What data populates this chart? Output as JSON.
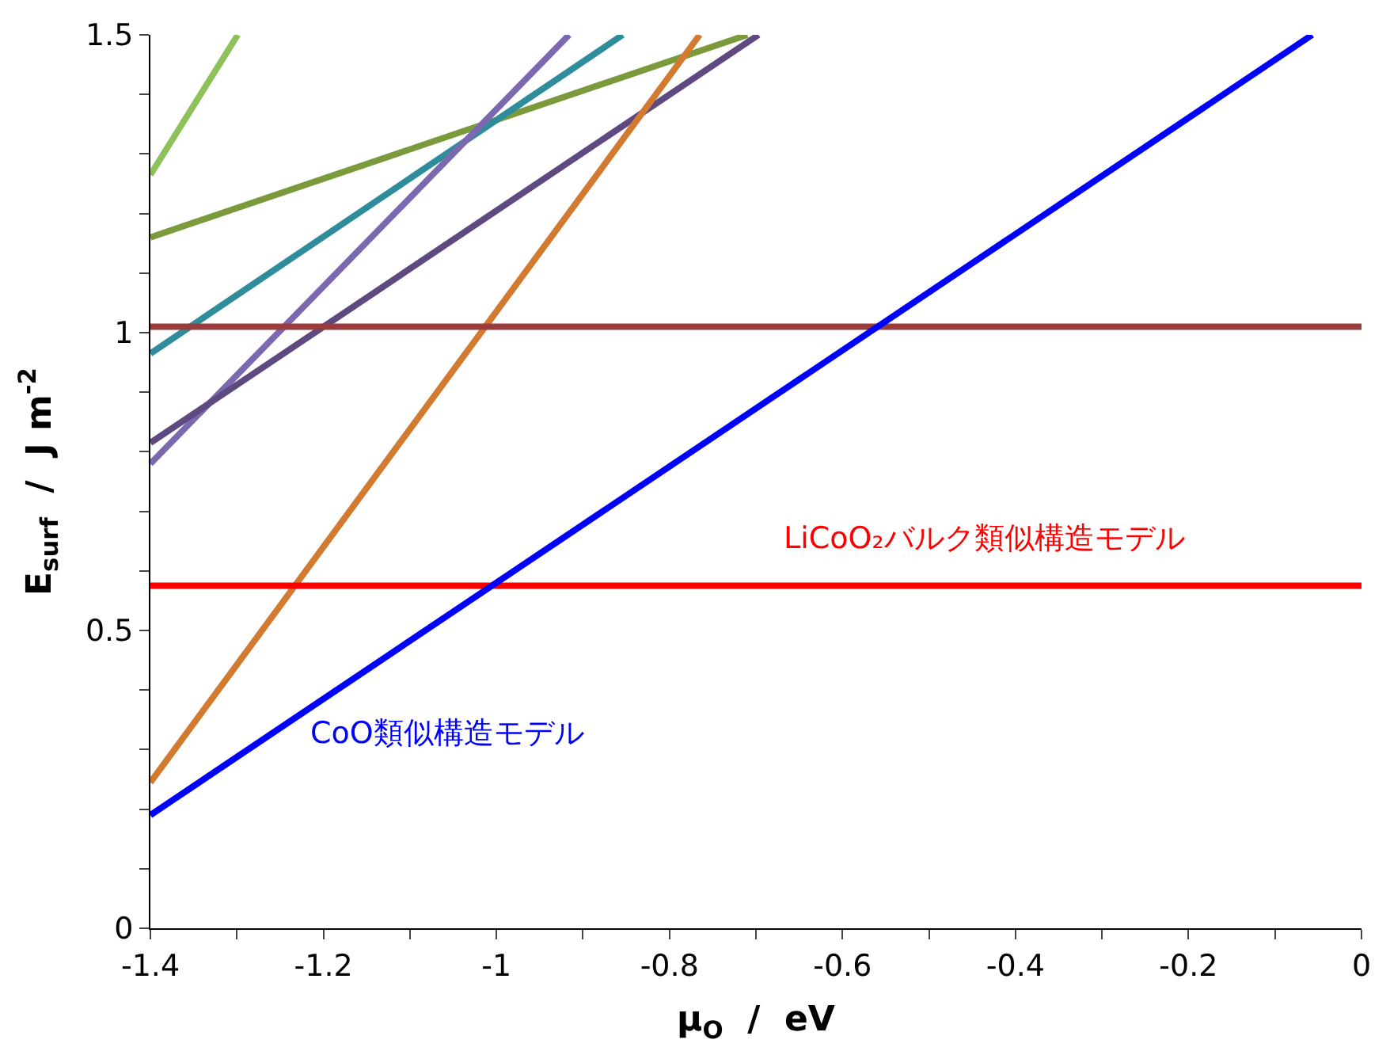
{
  "chart_data": {
    "type": "line",
    "xlabel": "μ$_{O}$  /  eV",
    "ylabel": "E$_{surf}$  /  J m$^{-2}$",
    "series": [
      {
        "color": "#8fc15a",
        "x": [
          -1.4,
          -1.299
        ],
        "values": [
          1.265,
          1.5
        ]
      },
      {
        "color": "#7a9a3c",
        "x": [
          -1.4,
          -0.71
        ],
        "values": [
          1.16,
          1.5
        ]
      },
      {
        "color": "#2f8c9a",
        "x": [
          -1.4,
          -0.854
        ],
        "values": [
          0.965,
          1.5
        ]
      },
      {
        "color": "#7c68b0",
        "x": [
          -1.4,
          -0.916
        ],
        "values": [
          0.78,
          1.5
        ]
      },
      {
        "color": "#5e4a80",
        "x": [
          -1.4,
          -0.697
        ],
        "values": [
          0.815,
          1.5
        ]
      },
      {
        "color": "#d27a30",
        "x": [
          -1.4,
          -0.765
        ],
        "values": [
          0.245,
          1.5
        ]
      },
      {
        "color": "#9a3c3c",
        "x": [
          -1.4,
          0
        ],
        "values": [
          1.01,
          1.01
        ]
      },
      {
        "color": "#ff0000",
        "x": [
          -1.4,
          0
        ],
        "values": [
          0.575,
          0.575
        ]
      },
      {
        "color": "#0000ff",
        "x": [
          -1.4,
          -0.057
        ],
        "values": [
          0.19,
          1.5
        ]
      }
    ],
    "annotations": [
      "LiCoO₂バルク類似構造モデル",
      "CoO類似構造モデル"
    ],
    "xlim": [
      -1.4,
      0
    ],
    "ylim": [
      0,
      1.5
    ],
    "xticks": [
      -1.4,
      {
        "value": -1.3,
        "label": null
      },
      -1.2,
      {
        "value": -1.1,
        "label": null
      },
      -1,
      {
        "value": -0.9,
        "label": null
      },
      -0.8,
      {
        "value": -0.7,
        "label": null
      },
      -0.6,
      {
        "value": -0.5,
        "label": null
      },
      -0.4,
      {
        "value": -0.3,
        "label": null
      },
      -0.2,
      {
        "value": -0.1,
        "label": null
      },
      0
    ],
    "yticks": [
      0,
      {
        "value": 0.1,
        "label": null
      },
      {
        "value": 0.2,
        "label": null
      },
      {
        "value": 0.3,
        "label": null
      },
      {
        "value": 0.4,
        "label": null
      },
      0.5,
      {
        "value": 0.6,
        "label": null
      },
      {
        "value": 0.7,
        "label": null
      },
      {
        "value": 0.8,
        "label": null
      },
      {
        "value": 0.9,
        "label": null
      },
      1,
      {
        "value": 1.1,
        "label": null
      },
      {
        "value": 1.2,
        "label": null
      },
      {
        "value": 1.3,
        "label": null
      },
      {
        "value": 1.4,
        "label": null
      },
      1.5
    ],
    "marker": "none",
    "line_style": "solid"
  }
}
